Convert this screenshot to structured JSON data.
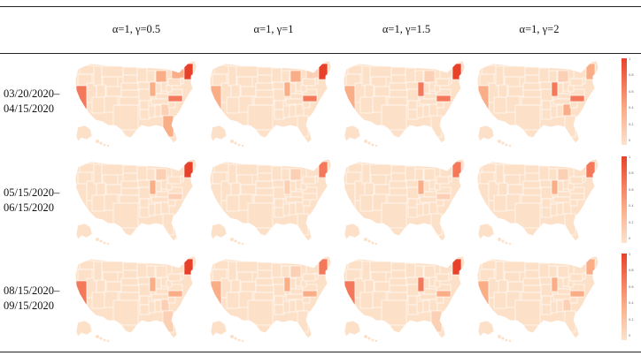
{
  "columns": [
    "α=1, γ=0.5",
    "α=1, γ=1",
    "α=1, γ=1.5",
    "α=1, γ=2"
  ],
  "rows": [
    {
      "line1": "03/20/2020–",
      "line2": "04/15/2020"
    },
    {
      "line1": "05/15/2020–",
      "line2": "06/15/2020"
    },
    {
      "line1": "08/15/2020–",
      "line2": "09/15/2020"
    }
  ],
  "colorbar": {
    "ticks": [
      "1",
      "0.8",
      "0.6",
      "0.4",
      "0.2",
      "0"
    ],
    "colors": [
      "#fde2cc",
      "#e8412a"
    ]
  },
  "highlight_colors": {
    "base": "#fde0c8",
    "light": "#fcd0b4",
    "mid": "#f9ae88",
    "strong": "#f4785a",
    "max": "#e8412a"
  }
}
